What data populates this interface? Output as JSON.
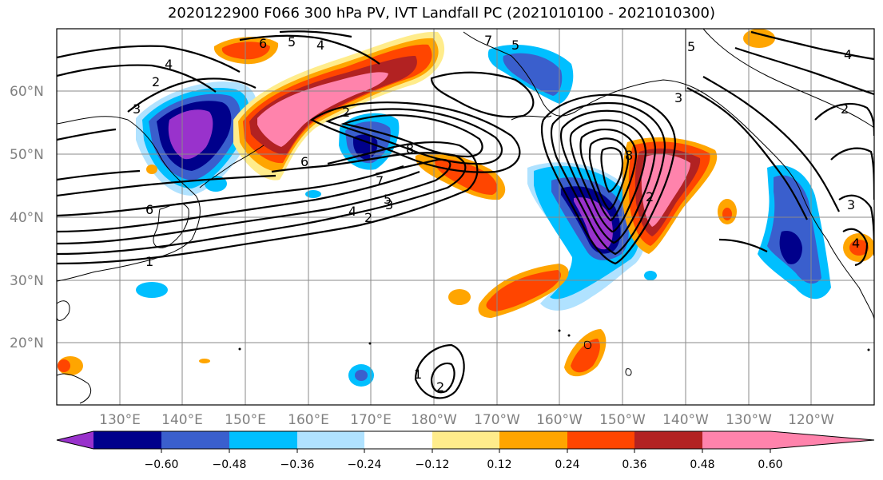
{
  "title": "2020122900 F066 300 hPa PV, IVT Landfall PC (2021010100 - 2021010300)",
  "map": {
    "lat_labels": [
      "60°N",
      "50°N",
      "40°N",
      "30°N",
      "20°N"
    ],
    "lon_labels": [
      "130°E",
      "140°E",
      "150°E",
      "160°E",
      "170°E",
      "180°W",
      "170°W",
      "160°W",
      "150°W",
      "140°W",
      "130°W",
      "120°W"
    ],
    "contour_labels": [
      "6",
      "5",
      "4",
      "4",
      "2",
      "3",
      "7",
      "6",
      "2",
      "7",
      "5",
      "4",
      "2",
      "3",
      "6",
      "1",
      "8",
      "5",
      "4",
      "3",
      "2",
      "1",
      "2",
      "2",
      "3",
      "4",
      "5",
      "8"
    ]
  },
  "colorbar": {
    "tick_labels": [
      "−0.60",
      "−0.48",
      "−0.36",
      "−0.24",
      "−0.12",
      "0.12",
      "0.24",
      "0.36",
      "0.48",
      "0.60"
    ],
    "colors": [
      "#9932cc",
      "#00008b",
      "#3a5fcd",
      "#00bfff",
      "#b0e2ff",
      "#ffffff",
      "#ffec8b",
      "#ffa500",
      "#ff4500",
      "#b22222",
      "#ff83ac"
    ]
  },
  "colors": {
    "purple": "#9932cc",
    "navy": "#00008b",
    "royal_blue": "#3a5fcd",
    "deep_sky_blue": "#00bfff",
    "light_blue": "#b0e2ff",
    "light_yellow": "#ffec8b",
    "orange": "#ffa500",
    "red_orange": "#ff4500",
    "firebrick": "#b22222",
    "pink": "#ff83ac"
  }
}
